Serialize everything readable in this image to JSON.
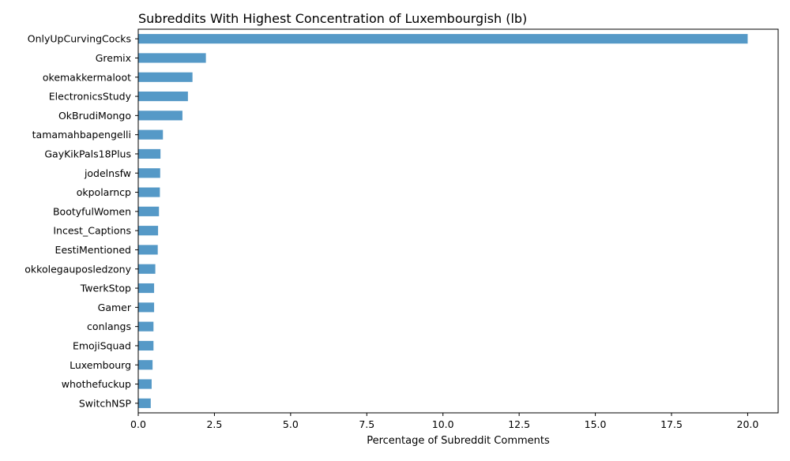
{
  "chart_data": {
    "type": "bar",
    "orientation": "horizontal",
    "title": "Subreddits With Highest Concentration of Luxembourgish (lb)",
    "xlabel": "Percentage of Subreddit Comments",
    "ylabel": "",
    "xlim": [
      0,
      21.0
    ],
    "xticks": [
      0.0,
      2.5,
      5.0,
      7.5,
      10.0,
      12.5,
      15.0,
      17.5,
      20.0
    ],
    "xtick_labels": [
      "0.0",
      "2.5",
      "5.0",
      "7.5",
      "10.0",
      "12.5",
      "15.0",
      "17.5",
      "20.0"
    ],
    "grid": false,
    "bar_color": "#5599c7",
    "categories": [
      "OnlyUpCurvingCocks",
      "Gremix",
      "okemakkermaloot",
      "ElectronicsStudy",
      "OkBrudiMongo",
      "tamamahbapengelli",
      "GayKikPals18Plus",
      "jodelnsfw",
      "okpolarncp",
      "BootyfulWomen",
      "Incest_Captions",
      "EestiMentioned",
      "okkolegauposledzony",
      "TwerkStop",
      "Gamer",
      "conlangs",
      "EmojiSquad",
      "Luxembourg",
      "whothefuckup",
      "SwitchNSP"
    ],
    "values": [
      20.0,
      2.22,
      1.78,
      1.63,
      1.45,
      0.81,
      0.73,
      0.72,
      0.71,
      0.68,
      0.65,
      0.64,
      0.56,
      0.52,
      0.52,
      0.5,
      0.5,
      0.47,
      0.44,
      0.41
    ]
  }
}
